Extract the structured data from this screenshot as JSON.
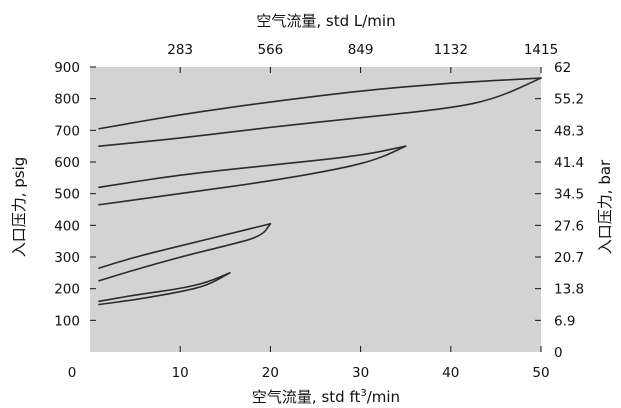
{
  "chart_data": {
    "type": "line",
    "title": "",
    "xlabel": "空气流量, std ft³/min",
    "xlabel_parts": {
      "before": "空气流量, std ft",
      "sup": "3",
      "after": "/min"
    },
    "x2label": "空气流量, std L/min",
    "ylabel": "入口压力, psig",
    "y2label": "入口压力, bar",
    "xlim": [
      0,
      50
    ],
    "ylim": [
      0,
      900
    ],
    "x_ticks": [
      0,
      10,
      20,
      30,
      40,
      50
    ],
    "y_ticks": [
      100,
      200,
      300,
      400,
      500,
      600,
      700,
      800,
      900
    ],
    "x2_ticks": [
      "283",
      "566",
      "849",
      "1132",
      "1415"
    ],
    "x2_tick_positions": [
      10,
      20,
      30,
      40,
      50
    ],
    "y2_ticks": [
      "0",
      "6.9",
      "13.8",
      "20.7",
      "27.6",
      "34.5",
      "41.4",
      "48.3",
      "55.2",
      "62"
    ],
    "y2_tick_positions": [
      0,
      100,
      200,
      300,
      400,
      500,
      600,
      700,
      800,
      900
    ],
    "grid": false,
    "background": "#d3d3d3",
    "line_color": "#2b2b2b",
    "series": [
      {
        "upper": [
          [
            1,
            705
          ],
          [
            10,
            750
          ],
          [
            20,
            790
          ],
          [
            30,
            825
          ],
          [
            40,
            850
          ],
          [
            50,
            865
          ]
        ],
        "lower": [
          [
            1,
            650
          ],
          [
            10,
            675
          ],
          [
            20,
            710
          ],
          [
            30,
            740
          ],
          [
            40,
            770
          ],
          [
            45,
            800
          ],
          [
            50,
            865
          ]
        ]
      },
      {
        "upper": [
          [
            1,
            520
          ],
          [
            10,
            560
          ],
          [
            20,
            590
          ],
          [
            30,
            620
          ],
          [
            35,
            650
          ]
        ],
        "lower": [
          [
            1,
            465
          ],
          [
            10,
            500
          ],
          [
            20,
            540
          ],
          [
            28,
            580
          ],
          [
            32,
            610
          ],
          [
            35,
            650
          ]
        ]
      },
      {
        "upper": [
          [
            1,
            265
          ],
          [
            5,
            300
          ],
          [
            10,
            335
          ],
          [
            15,
            370
          ],
          [
            20,
            405
          ]
        ],
        "lower": [
          [
            1,
            225
          ],
          [
            5,
            260
          ],
          [
            10,
            300
          ],
          [
            15,
            335
          ],
          [
            19,
            365
          ],
          [
            20,
            405
          ]
        ]
      },
      {
        "upper": [
          [
            1,
            160
          ],
          [
            5,
            180
          ],
          [
            10,
            200
          ],
          [
            13,
            220
          ],
          [
            15.5,
            250
          ]
        ],
        "lower": [
          [
            1,
            150
          ],
          [
            5,
            165
          ],
          [
            10,
            190
          ],
          [
            13,
            210
          ],
          [
            15.5,
            250
          ]
        ]
      }
    ]
  }
}
